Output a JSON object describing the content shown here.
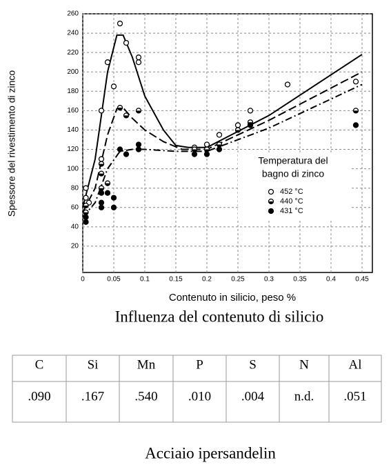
{
  "chart_data": {
    "type": "scatter",
    "x_label": "Contenuto in silicio, peso %",
    "y_label": "Spessore del rivestimento di zinco",
    "xlim": [
      0,
      0.45
    ],
    "xticks": [
      0,
      0.05,
      0.1,
      0.15,
      0.2,
      0.25,
      0.3,
      0.35,
      0.4,
      0.45
    ],
    "ylim": [
      0,
      260
    ],
    "yticks": [
      20,
      40,
      60,
      80,
      100,
      120,
      140,
      160,
      180,
      200,
      220,
      240,
      260
    ],
    "grid": true,
    "legend_title": [
      "Temperatura del",
      "bagno di zinco"
    ],
    "series": [
      {
        "name": "452 °C",
        "type": "scatter",
        "marker": "open",
        "color": "#000000",
        "x": [
          0.005,
          0.005,
          0.01,
          0.03,
          0.03,
          0.04,
          0.05,
          0.06,
          0.07,
          0.09,
          0.09,
          0.18,
          0.2,
          0.22,
          0.25,
          0.27,
          0.33,
          0.44
        ],
        "values": [
          80,
          70,
          65,
          160,
          110,
          210,
          185,
          250,
          230,
          215,
          210,
          122,
          125,
          135,
          145,
          160,
          187,
          190
        ]
      },
      {
        "name": "440 °C",
        "type": "scatter",
        "marker": "half",
        "color": "#000000",
        "x": [
          0.005,
          0.005,
          0.03,
          0.03,
          0.03,
          0.04,
          0.06,
          0.07,
          0.09,
          0.18,
          0.2,
          0.22,
          0.25,
          0.27,
          0.44
        ],
        "values": [
          62,
          55,
          105,
          95,
          80,
          85,
          163,
          155,
          160,
          120,
          120,
          125,
          140,
          148,
          160
        ]
      },
      {
        "name": "431 °C",
        "type": "scatter",
        "marker": "filled",
        "color": "#000000",
        "x": [
          0.005,
          0.005,
          0.03,
          0.03,
          0.03,
          0.04,
          0.05,
          0.05,
          0.06,
          0.07,
          0.09,
          0.09,
          0.18,
          0.2,
          0.22,
          0.27,
          0.44
        ],
        "values": [
          50,
          45,
          75,
          65,
          60,
          75,
          70,
          60,
          120,
          115,
          125,
          120,
          115,
          115,
          120,
          145,
          145
        ]
      },
      {
        "type": "line",
        "dash": "solid",
        "color": "#000000",
        "x": [
          0,
          0.02,
          0.04,
          0.055,
          0.065,
          0.08,
          0.1,
          0.13,
          0.15,
          0.17,
          0.2,
          0.3,
          0.45
        ],
        "values": [
          60,
          110,
          200,
          238,
          238,
          215,
          175,
          140,
          124,
          122,
          122,
          155,
          218
        ]
      },
      {
        "type": "line",
        "dash": "dashed",
        "color": "#000000",
        "x": [
          0,
          0.02,
          0.04,
          0.055,
          0.065,
          0.08,
          0.1,
          0.13,
          0.16,
          0.2,
          0.3,
          0.45
        ],
        "values": [
          55,
          80,
          135,
          162,
          163,
          152,
          140,
          128,
          120,
          120,
          150,
          200
        ]
      },
      {
        "type": "line",
        "dash": "dashdot",
        "color": "#000000",
        "x": [
          0,
          0.02,
          0.04,
          0.06,
          0.08,
          0.1,
          0.15,
          0.2,
          0.3,
          0.45
        ],
        "values": [
          50,
          65,
          100,
          118,
          120,
          120,
          118,
          118,
          142,
          187
        ]
      }
    ]
  },
  "figure_caption": "Influenza del contenuto di silicio",
  "table": {
    "header": [
      "C",
      "Si",
      "Mn",
      "P",
      "S",
      "N",
      "Al"
    ],
    "rows": [
      [
        ".090",
        ".167",
        ".540",
        ".010",
        ".004",
        "n.d.",
        ".051"
      ]
    ]
  },
  "footer": "Acciaio ipersandelin"
}
